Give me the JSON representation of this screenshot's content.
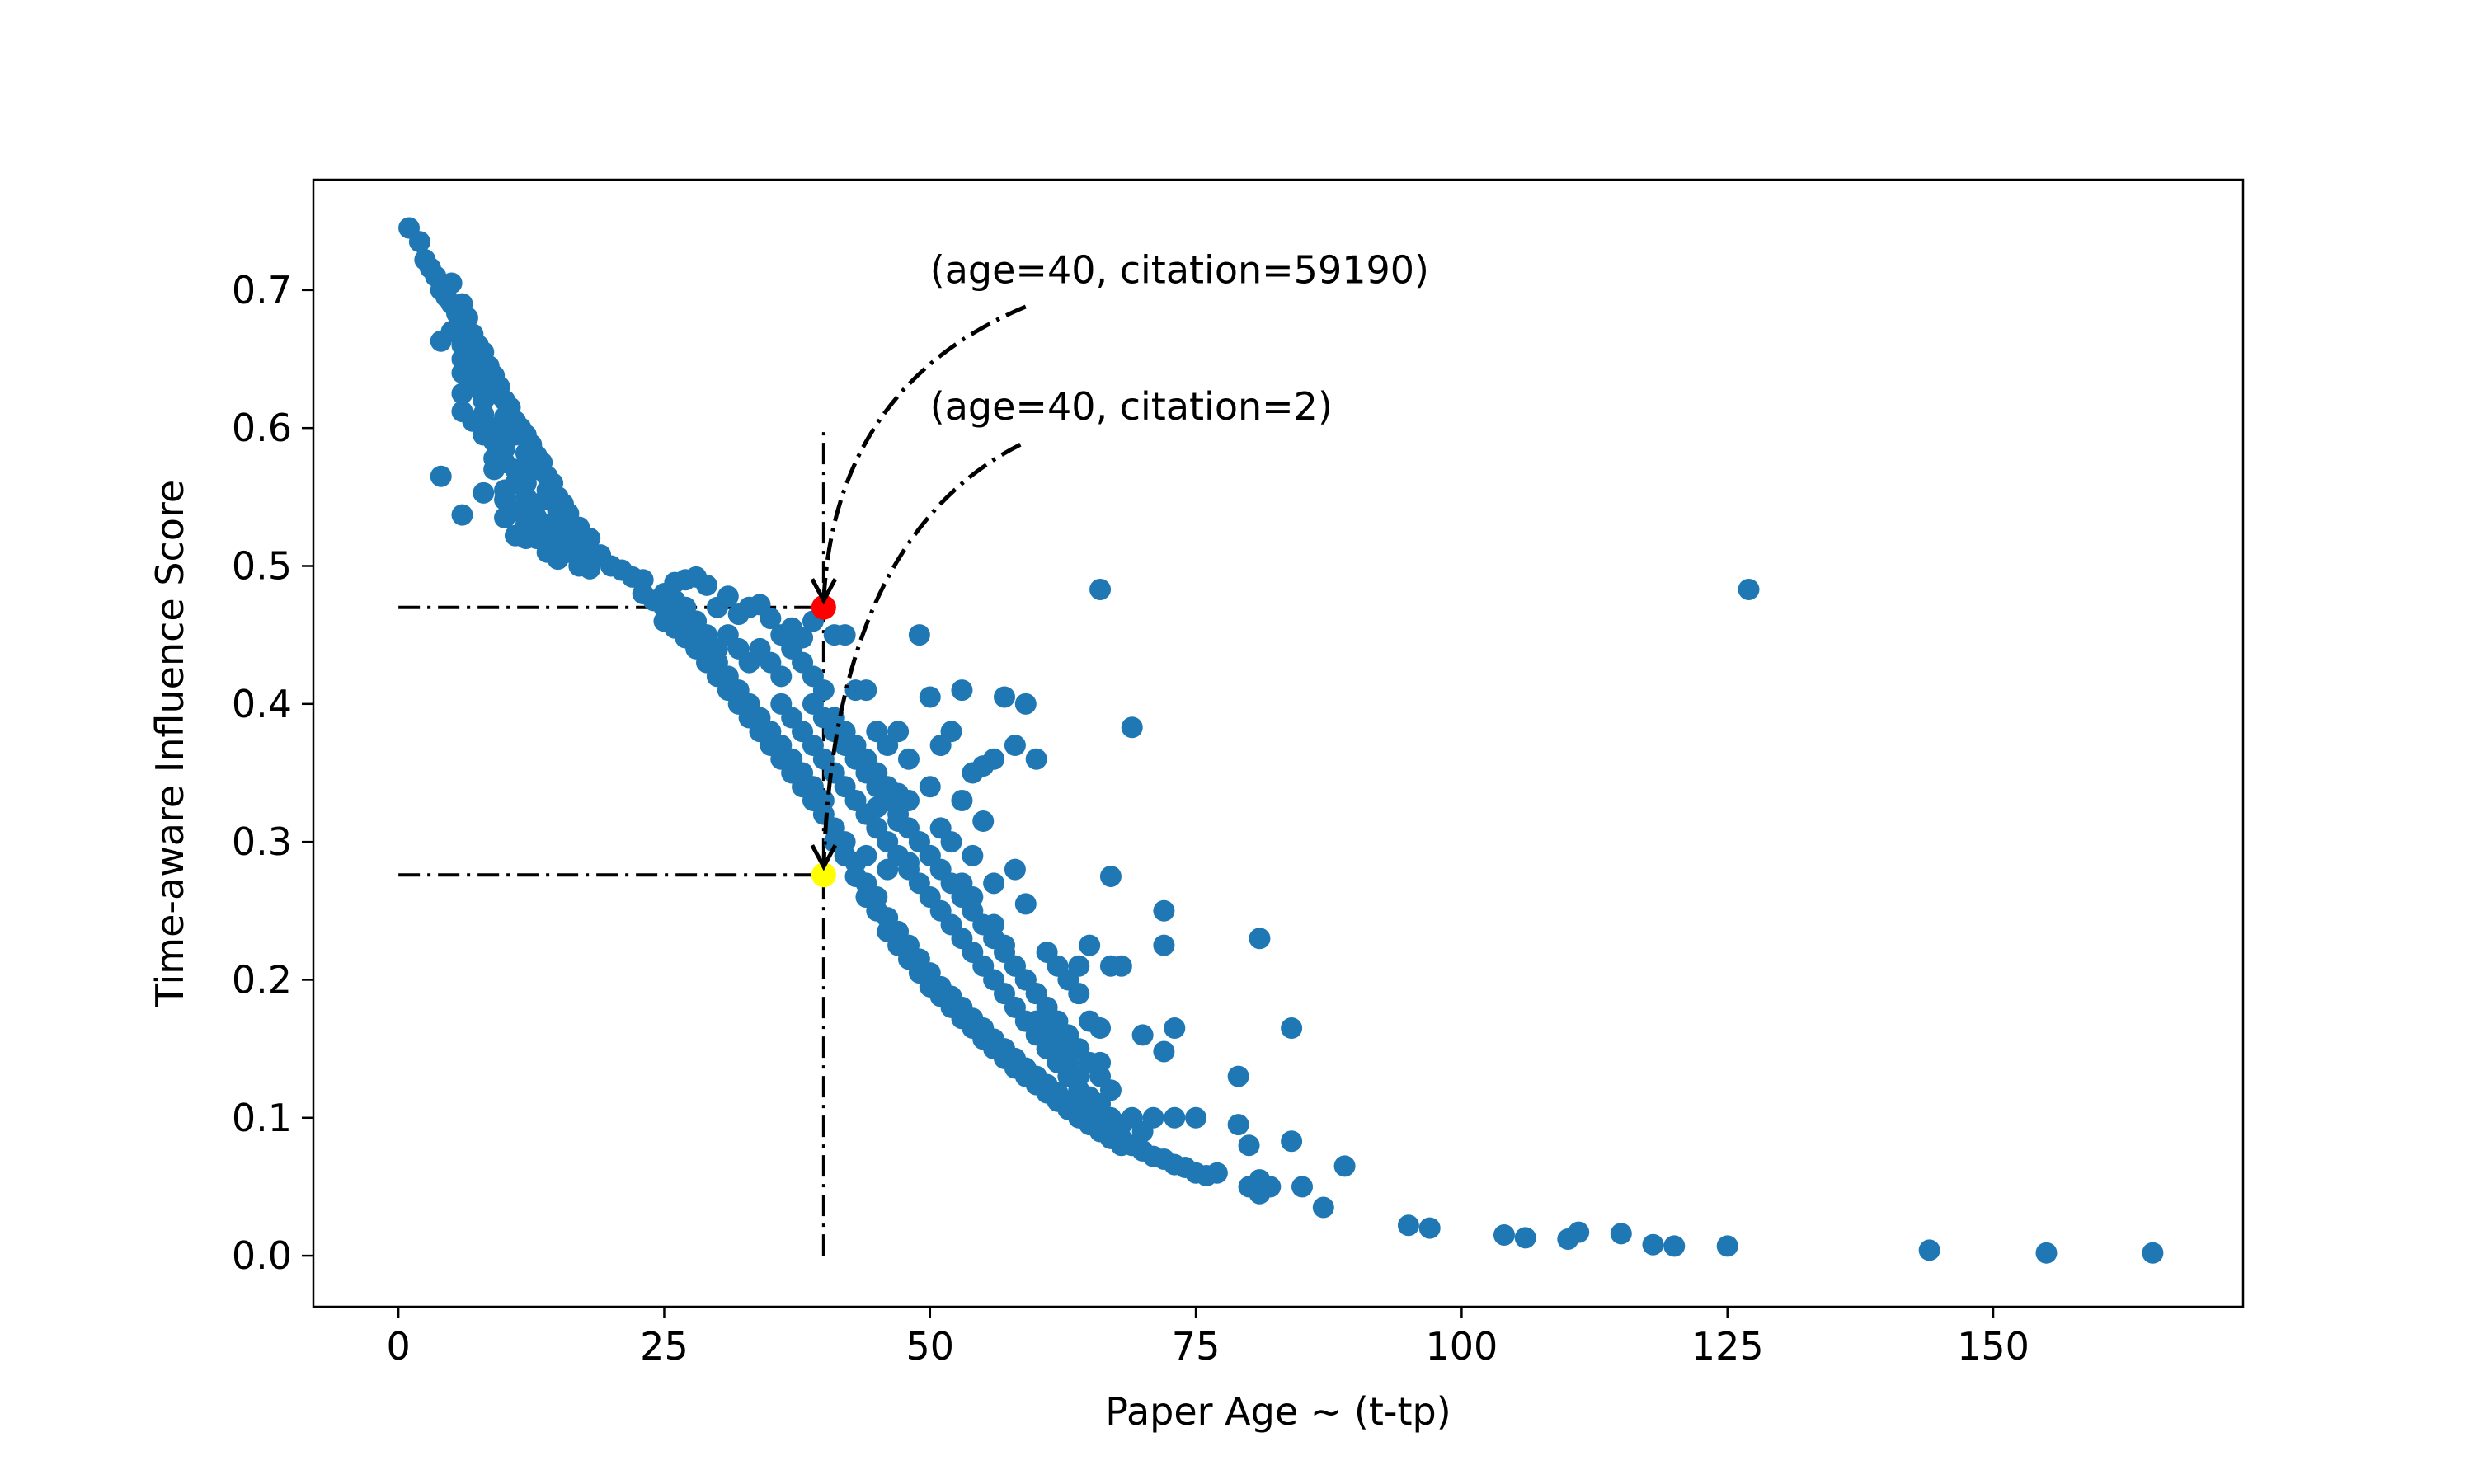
{
  "chart_data": {
    "type": "scatter",
    "xlabel": "Paper Age ~ (t-tp)",
    "ylabel": "Time-aware Influence Score",
    "xlim": [
      -8,
      173.5
    ],
    "ylim": [
      -0.037,
      0.78
    ],
    "xticks": [
      0,
      25,
      50,
      75,
      100,
      125,
      150
    ],
    "xtick_labels": [
      "0",
      "25",
      "50",
      "75",
      "100",
      "125",
      "150"
    ],
    "yticks": [
      0.0,
      0.1,
      0.2,
      0.3,
      0.4,
      0.5,
      0.6,
      0.7
    ],
    "ytick_labels": [
      "0.0",
      "0.1",
      "0.2",
      "0.3",
      "0.4",
      "0.5",
      "0.6",
      "0.7"
    ],
    "grid": false,
    "legend": "none",
    "colors": {
      "points": "#1f77b4",
      "high_citation_marker": "#ff0000",
      "low_citation_marker": "#ffff00",
      "guide_lines": "#000000"
    },
    "highlights": [
      {
        "name": "high-citation-point",
        "x": 40,
        "y": 0.47,
        "color": "#ff0000",
        "annotation": "(age=40, citation=59190)",
        "text_x": 50,
        "text_y": 0.705
      },
      {
        "name": "low-citation-point",
        "x": 40,
        "y": 0.276,
        "color": "#ffff00",
        "annotation": "(age=40, citation=2)",
        "text_x": 50,
        "text_y": 0.606
      }
    ],
    "guide_lines": [
      {
        "name": "guide-hline-high",
        "x1": 0,
        "y1": 0.47,
        "x2": 40,
        "y2": 0.47
      },
      {
        "name": "guide-hline-low",
        "x1": 0,
        "y1": 0.276,
        "x2": 40,
        "y2": 0.276
      },
      {
        "name": "guide-vline-age-40",
        "x1": 40,
        "y1": 0.0,
        "x2": 40,
        "y2": 0.6
      }
    ],
    "arrows": [
      {
        "name": "arrow-to-high-citation",
        "from": [
          59,
          0.688
        ],
        "ctrl": [
          41,
          0.63
        ],
        "to": [
          40,
          0.475
        ]
      },
      {
        "name": "arrow-to-low-citation",
        "from": [
          58.5,
          0.588
        ],
        "ctrl": [
          41,
          0.52
        ],
        "to": [
          40,
          0.282
        ]
      }
    ],
    "points": [
      [
        1,
        0.745
      ],
      [
        2,
        0.735
      ],
      [
        2.5,
        0.722
      ],
      [
        3,
        0.716
      ],
      [
        3.5,
        0.71
      ],
      [
        4,
        0.7
      ],
      [
        4.5,
        0.695
      ],
      [
        5,
        0.705
      ],
      [
        5,
        0.69
      ],
      [
        5.5,
        0.683
      ],
      [
        6,
        0.69
      ],
      [
        6,
        0.675
      ],
      [
        6.5,
        0.68
      ],
      [
        6,
        0.66
      ],
      [
        7,
        0.668
      ],
      [
        7,
        0.655
      ],
      [
        7.5,
        0.66
      ],
      [
        8,
        0.655
      ],
      [
        8,
        0.64
      ],
      [
        8.5,
        0.645
      ],
      [
        9,
        0.638
      ],
      [
        9,
        0.625
      ],
      [
        9.5,
        0.63
      ],
      [
        10,
        0.62
      ],
      [
        10,
        0.608
      ],
      [
        10.5,
        0.615
      ],
      [
        11,
        0.605
      ],
      [
        11,
        0.595
      ],
      [
        11.5,
        0.6
      ],
      [
        12,
        0.595
      ],
      [
        12,
        0.582
      ],
      [
        12.5,
        0.588
      ],
      [
        13,
        0.58
      ],
      [
        13,
        0.57
      ],
      [
        13.5,
        0.575
      ],
      [
        14,
        0.565
      ],
      [
        14,
        0.555
      ],
      [
        14.5,
        0.56
      ],
      [
        15,
        0.55
      ],
      [
        15,
        0.54
      ],
      [
        15.5,
        0.545
      ],
      [
        16,
        0.538
      ],
      [
        16,
        0.53
      ],
      [
        17,
        0.528
      ],
      [
        17,
        0.518
      ],
      [
        18,
        0.52
      ],
      [
        18,
        0.51
      ],
      [
        19,
        0.508
      ],
      [
        20,
        0.5
      ],
      [
        21,
        0.497
      ],
      [
        22,
        0.492
      ],
      [
        23,
        0.49
      ],
      [
        4,
        0.663
      ],
      [
        5,
        0.67
      ],
      [
        6,
        0.65
      ],
      [
        6,
        0.64
      ],
      [
        7,
        0.645
      ],
      [
        7,
        0.63
      ],
      [
        8,
        0.62
      ],
      [
        8,
        0.61
      ],
      [
        9,
        0.6
      ],
      [
        9,
        0.59
      ],
      [
        10,
        0.585
      ],
      [
        10,
        0.575
      ],
      [
        11,
        0.57
      ],
      [
        11,
        0.56
      ],
      [
        12,
        0.56
      ],
      [
        12,
        0.55
      ],
      [
        13,
        0.545
      ],
      [
        13,
        0.535
      ],
      [
        14,
        0.53
      ],
      [
        14,
        0.52
      ],
      [
        15,
        0.525
      ],
      [
        15,
        0.515
      ],
      [
        16,
        0.515
      ],
      [
        17,
        0.505
      ],
      [
        6,
        0.612
      ],
      [
        7,
        0.605
      ],
      [
        8,
        0.595
      ],
      [
        9,
        0.57
      ],
      [
        10,
        0.555
      ],
      [
        11,
        0.54
      ],
      [
        12,
        0.53
      ],
      [
        13,
        0.52
      ],
      [
        14,
        0.51
      ],
      [
        6,
        0.625
      ],
      [
        8,
        0.628
      ],
      [
        10,
        0.598
      ],
      [
        12,
        0.572
      ],
      [
        14,
        0.548
      ],
      [
        16,
        0.525
      ],
      [
        18,
        0.498
      ],
      [
        4,
        0.565
      ],
      [
        6,
        0.537
      ],
      [
        8,
        0.553
      ],
      [
        9,
        0.578
      ],
      [
        10,
        0.548
      ],
      [
        11,
        0.56
      ],
      [
        11,
        0.522
      ],
      [
        12,
        0.543
      ],
      [
        13,
        0.525
      ],
      [
        14,
        0.53
      ],
      [
        15,
        0.505
      ],
      [
        16,
        0.51
      ],
      [
        17,
        0.5
      ],
      [
        10,
        0.535
      ],
      [
        12,
        0.52
      ],
      [
        23,
        0.48
      ],
      [
        24,
        0.475
      ],
      [
        25,
        0.47
      ],
      [
        25,
        0.46
      ],
      [
        26,
        0.465
      ],
      [
        26,
        0.455
      ],
      [
        27,
        0.458
      ],
      [
        27,
        0.448
      ],
      [
        28,
        0.45
      ],
      [
        28,
        0.44
      ],
      [
        29,
        0.44
      ],
      [
        29,
        0.43
      ],
      [
        30,
        0.43
      ],
      [
        30,
        0.42
      ],
      [
        31,
        0.42
      ],
      [
        31,
        0.41
      ],
      [
        32,
        0.41
      ],
      [
        32,
        0.4
      ],
      [
        33,
        0.4
      ],
      [
        33,
        0.39
      ],
      [
        34,
        0.39
      ],
      [
        34,
        0.38
      ],
      [
        35,
        0.38
      ],
      [
        35,
        0.37
      ],
      [
        36,
        0.37
      ],
      [
        36,
        0.36
      ],
      [
        37,
        0.36
      ],
      [
        37,
        0.35
      ],
      [
        38,
        0.35
      ],
      [
        38,
        0.34
      ],
      [
        39,
        0.34
      ],
      [
        39,
        0.33
      ],
      [
        40,
        0.33
      ],
      [
        40,
        0.32
      ],
      [
        41,
        0.31
      ],
      [
        41,
        0.3
      ],
      [
        42,
        0.3
      ],
      [
        42,
        0.29
      ],
      [
        43,
        0.285
      ],
      [
        43,
        0.275
      ],
      [
        44,
        0.27
      ],
      [
        44,
        0.26
      ],
      [
        45,
        0.26
      ],
      [
        45,
        0.25
      ],
      [
        46,
        0.245
      ],
      [
        46,
        0.235
      ],
      [
        47,
        0.235
      ],
      [
        47,
        0.225
      ],
      [
        48,
        0.225
      ],
      [
        48,
        0.215
      ],
      [
        49,
        0.215
      ],
      [
        49,
        0.205
      ],
      [
        50,
        0.205
      ],
      [
        50,
        0.195
      ],
      [
        51,
        0.195
      ],
      [
        51,
        0.188
      ],
      [
        52,
        0.188
      ],
      [
        52,
        0.18
      ],
      [
        53,
        0.18
      ],
      [
        53,
        0.172
      ],
      [
        54,
        0.172
      ],
      [
        54,
        0.165
      ],
      [
        55,
        0.165
      ],
      [
        55,
        0.157
      ],
      [
        56,
        0.157
      ],
      [
        56,
        0.15
      ],
      [
        57,
        0.15
      ],
      [
        57,
        0.143
      ],
      [
        58,
        0.143
      ],
      [
        58,
        0.136
      ],
      [
        59,
        0.136
      ],
      [
        59,
        0.13
      ],
      [
        60,
        0.13
      ],
      [
        60,
        0.124
      ],
      [
        61,
        0.124
      ],
      [
        61,
        0.118
      ],
      [
        62,
        0.118
      ],
      [
        62,
        0.112
      ],
      [
        63,
        0.112
      ],
      [
        63,
        0.106
      ],
      [
        64,
        0.106
      ],
      [
        64,
        0.1
      ],
      [
        65,
        0.1
      ],
      [
        65,
        0.095
      ],
      [
        66,
        0.095
      ],
      [
        66,
        0.09
      ],
      [
        67,
        0.09
      ],
      [
        67,
        0.085
      ],
      [
        68,
        0.085
      ],
      [
        68,
        0.08
      ],
      [
        69,
        0.08
      ],
      [
        70,
        0.076
      ],
      [
        71,
        0.072
      ],
      [
        72,
        0.07
      ],
      [
        73,
        0.066
      ],
      [
        74,
        0.064
      ],
      [
        75,
        0.06
      ],
      [
        76,
        0.058
      ],
      [
        77,
        0.06
      ],
      [
        26,
        0.488
      ],
      [
        27,
        0.49
      ],
      [
        28,
        0.492
      ],
      [
        29,
        0.486
      ],
      [
        30,
        0.47
      ],
      [
        31,
        0.478
      ],
      [
        32,
        0.465
      ],
      [
        33,
        0.47
      ],
      [
        34,
        0.472
      ],
      [
        35,
        0.462
      ],
      [
        36,
        0.45
      ],
      [
        37,
        0.455
      ],
      [
        37,
        0.44
      ],
      [
        38,
        0.448
      ],
      [
        39,
        0.46
      ],
      [
        39,
        0.42
      ],
      [
        38,
        0.43
      ],
      [
        36,
        0.42
      ],
      [
        35,
        0.43
      ],
      [
        34,
        0.44
      ],
      [
        33,
        0.43
      ],
      [
        32,
        0.44
      ],
      [
        31,
        0.45
      ],
      [
        30,
        0.44
      ],
      [
        29,
        0.45
      ],
      [
        28,
        0.46
      ],
      [
        27,
        0.47
      ],
      [
        26,
        0.475
      ],
      [
        25,
        0.48
      ],
      [
        36,
        0.4
      ],
      [
        37,
        0.39
      ],
      [
        38,
        0.38
      ],
      [
        39,
        0.37
      ],
      [
        40,
        0.36
      ],
      [
        41,
        0.35
      ],
      [
        42,
        0.34
      ],
      [
        43,
        0.33
      ],
      [
        44,
        0.32
      ],
      [
        45,
        0.31
      ],
      [
        46,
        0.3
      ],
      [
        47,
        0.29
      ],
      [
        48,
        0.28
      ],
      [
        49,
        0.27
      ],
      [
        50,
        0.26
      ],
      [
        51,
        0.25
      ],
      [
        52,
        0.24
      ],
      [
        53,
        0.23
      ],
      [
        54,
        0.22
      ],
      [
        55,
        0.21
      ],
      [
        56,
        0.2
      ],
      [
        57,
        0.19
      ],
      [
        58,
        0.18
      ],
      [
        59,
        0.17
      ],
      [
        60,
        0.16
      ],
      [
        61,
        0.15
      ],
      [
        62,
        0.14
      ],
      [
        63,
        0.13
      ],
      [
        64,
        0.12
      ],
      [
        65,
        0.115
      ],
      [
        66,
        0.11
      ],
      [
        67,
        0.1
      ],
      [
        68,
        0.095
      ],
      [
        39,
        0.4
      ],
      [
        40,
        0.39
      ],
      [
        41,
        0.38
      ],
      [
        42,
        0.37
      ],
      [
        43,
        0.36
      ],
      [
        44,
        0.35
      ],
      [
        45,
        0.34
      ],
      [
        46,
        0.33
      ],
      [
        47,
        0.32
      ],
      [
        48,
        0.31
      ],
      [
        49,
        0.3
      ],
      [
        50,
        0.29
      ],
      [
        51,
        0.28
      ],
      [
        52,
        0.27
      ],
      [
        53,
        0.26
      ],
      [
        54,
        0.25
      ],
      [
        55,
        0.24
      ],
      [
        56,
        0.23
      ],
      [
        57,
        0.22
      ],
      [
        58,
        0.21
      ],
      [
        59,
        0.2
      ],
      [
        60,
        0.19
      ],
      [
        61,
        0.18
      ],
      [
        62,
        0.17
      ],
      [
        63,
        0.16
      ],
      [
        64,
        0.15
      ],
      [
        65,
        0.14
      ],
      [
        66,
        0.13
      ],
      [
        41,
        0.45
      ],
      [
        42,
        0.45
      ],
      [
        43,
        0.41
      ],
      [
        44,
        0.41
      ],
      [
        45,
        0.38
      ],
      [
        46,
        0.37
      ],
      [
        47,
        0.38
      ],
      [
        48,
        0.36
      ],
      [
        49,
        0.45
      ],
      [
        50,
        0.405
      ],
      [
        53,
        0.41
      ],
      [
        57,
        0.405
      ],
      [
        59,
        0.4
      ],
      [
        52,
        0.38
      ],
      [
        51,
        0.37
      ],
      [
        55,
        0.355
      ],
      [
        56,
        0.36
      ],
      [
        58,
        0.37
      ],
      [
        60,
        0.36
      ],
      [
        54,
        0.35
      ],
      [
        50,
        0.34
      ],
      [
        53,
        0.33
      ],
      [
        48,
        0.33
      ],
      [
        47,
        0.335
      ],
      [
        46,
        0.34
      ],
      [
        45,
        0.35
      ],
      [
        44,
        0.36
      ],
      [
        43,
        0.37
      ],
      [
        42,
        0.38
      ],
      [
        41,
        0.39
      ],
      [
        40,
        0.41
      ],
      [
        45,
        0.325
      ],
      [
        47,
        0.315
      ],
      [
        49,
        0.3
      ],
      [
        51,
        0.31
      ],
      [
        52,
        0.3
      ],
      [
        54,
        0.29
      ],
      [
        55,
        0.315
      ],
      [
        50,
        0.29
      ],
      [
        48,
        0.285
      ],
      [
        46,
        0.28
      ],
      [
        44,
        0.29
      ],
      [
        53,
        0.27
      ],
      [
        54,
        0.26
      ],
      [
        56,
        0.27
      ],
      [
        58,
        0.28
      ],
      [
        59,
        0.255
      ],
      [
        56,
        0.24
      ],
      [
        57,
        0.225
      ],
      [
        58,
        0.21
      ],
      [
        59,
        0.2
      ],
      [
        60,
        0.19
      ],
      [
        61,
        0.22
      ],
      [
        62,
        0.21
      ],
      [
        63,
        0.2
      ],
      [
        64,
        0.19
      ],
      [
        60,
        0.17
      ],
      [
        61,
        0.16
      ],
      [
        62,
        0.165
      ],
      [
        63,
        0.15
      ],
      [
        65,
        0.17
      ],
      [
        66,
        0.165
      ],
      [
        65,
        0.225
      ],
      [
        64,
        0.21
      ],
      [
        67,
        0.275
      ],
      [
        67,
        0.21
      ],
      [
        68,
        0.21
      ],
      [
        69,
        0.383
      ],
      [
        72,
        0.25
      ],
      [
        72,
        0.225
      ],
      [
        73,
        0.165
      ],
      [
        72,
        0.148
      ],
      [
        70,
        0.16
      ],
      [
        71,
        0.1
      ],
      [
        73,
        0.1
      ],
      [
        75,
        0.1
      ],
      [
        79,
        0.13
      ],
      [
        79,
        0.095
      ],
      [
        80,
        0.08
      ],
      [
        81,
        0.23
      ],
      [
        84,
        0.165
      ],
      [
        84,
        0.083
      ],
      [
        85,
        0.05
      ],
      [
        87,
        0.035
      ],
      [
        89,
        0.065
      ],
      [
        81,
        0.055
      ],
      [
        82,
        0.05
      ],
      [
        80,
        0.05
      ],
      [
        81,
        0.045
      ],
      [
        69,
        0.1
      ],
      [
        70,
        0.09
      ],
      [
        67,
        0.12
      ],
      [
        66,
        0.14
      ],
      [
        63,
        0.14
      ],
      [
        64,
        0.13
      ],
      [
        62,
        0.155
      ],
      [
        66,
        0.483
      ],
      [
        127,
        0.483
      ],
      [
        95,
        0.022
      ],
      [
        97,
        0.02
      ],
      [
        104,
        0.015
      ],
      [
        106,
        0.013
      ],
      [
        110,
        0.012
      ],
      [
        111,
        0.017
      ],
      [
        115,
        0.016
      ],
      [
        118,
        0.008
      ],
      [
        120,
        0.007
      ],
      [
        125,
        0.007
      ],
      [
        144,
        0.004
      ],
      [
        155,
        0.002
      ],
      [
        165,
        0.002
      ]
    ]
  }
}
